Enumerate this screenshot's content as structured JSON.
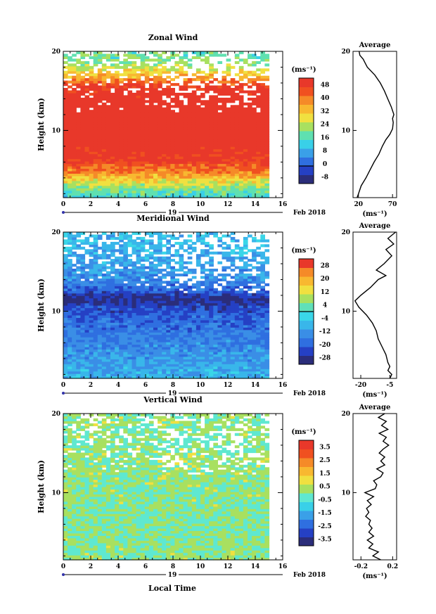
{
  "chart_data": [
    {
      "type": "heatmap",
      "title": "Zonal Wind",
      "xlabel": "",
      "ylabel": "Height (km)",
      "xlim": [
        0,
        16
      ],
      "ylim": [
        1.5,
        20
      ],
      "x_ticks": [
        "0",
        "2",
        "4",
        "6",
        "8",
        "10",
        "12",
        "14",
        "16"
      ],
      "y_ticks": [
        "10",
        "20"
      ],
      "date_label": "19",
      "date_suffix": "Feb 2018",
      "colorbar": {
        "unit": "(ms⁻¹)",
        "ticks": [
          "48",
          "40",
          "32",
          "24",
          "16",
          "8",
          "0",
          "-8"
        ],
        "min": -12,
        "max": 52,
        "colors": [
          "#2b2d7a",
          "#2540c4",
          "#2f6fe0",
          "#3aa0e8",
          "#39d0e8",
          "#5fe0b0",
          "#a8e060",
          "#f0e040",
          "#f8b830",
          "#f58a28",
          "#f05020",
          "#e8382a"
        ]
      },
      "field_profile": [
        {
          "h": 1.5,
          "v": 14
        },
        {
          "h": 2.5,
          "v": 20
        },
        {
          "h": 3.5,
          "v": 28
        },
        {
          "h": 4.5,
          "v": 38
        },
        {
          "h": 6,
          "v": 48
        },
        {
          "h": 8,
          "v": 52
        },
        {
          "h": 10,
          "v": 52
        },
        {
          "h": 12,
          "v": 52
        },
        {
          "h": 14,
          "v": 52
        },
        {
          "h": 15.5,
          "v": 48
        },
        {
          "h": 16.5,
          "v": 36
        },
        {
          "h": 17.5,
          "v": 28
        },
        {
          "h": 18.5,
          "v": 20
        },
        {
          "h": 20,
          "v": 18
        }
      ],
      "data_end_time": 15,
      "average_profile": {
        "title": "Average",
        "xlabel": "(ms⁻¹)",
        "x_ticks": [
          "20",
          "70"
        ],
        "xlim": [
          12,
          76
        ],
        "points": [
          {
            "h": 1.5,
            "v": 18
          },
          {
            "h": 2,
            "v": 20
          },
          {
            "h": 3,
            "v": 24
          },
          {
            "h": 4,
            "v": 31
          },
          {
            "h": 5,
            "v": 37
          },
          {
            "h": 6,
            "v": 43
          },
          {
            "h": 7,
            "v": 50
          },
          {
            "h": 8,
            "v": 55
          },
          {
            "h": 8.8,
            "v": 60
          },
          {
            "h": 9.5,
            "v": 66
          },
          {
            "h": 10.2,
            "v": 70
          },
          {
            "h": 11,
            "v": 71
          },
          {
            "h": 11.5,
            "v": 70
          },
          {
            "h": 12,
            "v": 72
          },
          {
            "h": 13,
            "v": 68
          },
          {
            "h": 14,
            "v": 63
          },
          {
            "h": 15,
            "v": 58
          },
          {
            "h": 16,
            "v": 52
          },
          {
            "h": 17,
            "v": 44
          },
          {
            "h": 18,
            "v": 33
          },
          {
            "h": 18.5,
            "v": 30
          },
          {
            "h": 19,
            "v": 27
          },
          {
            "h": 19.5,
            "v": 22
          },
          {
            "h": 20,
            "v": 21
          }
        ]
      }
    },
    {
      "type": "heatmap",
      "title": "Meridional Wind",
      "xlabel": "",
      "ylabel": "Height (km)",
      "xlim": [
        0,
        16
      ],
      "ylim": [
        1.5,
        20
      ],
      "x_ticks": [
        "0",
        "2",
        "4",
        "6",
        "8",
        "10",
        "12",
        "14",
        "16"
      ],
      "y_ticks": [
        "10",
        "20"
      ],
      "date_label": "19",
      "date_suffix": "Feb 2018",
      "colorbar": {
        "unit": "(ms⁻¹)",
        "ticks": [
          "28",
          "20",
          "12",
          "4",
          "-4",
          "-12",
          "-20",
          "-28"
        ],
        "min": -32,
        "max": 32,
        "colors": [
          "#2b2d7a",
          "#2540c4",
          "#2f6fe0",
          "#3a8ee6",
          "#39b6ea",
          "#3ad6e8",
          "#60e0b8",
          "#a8e060",
          "#f0e040",
          "#f8b830",
          "#f58a28",
          "#e8382a"
        ]
      },
      "field_profile": [
        {
          "h": 1.5,
          "v": -8
        },
        {
          "h": 3,
          "v": -10
        },
        {
          "h": 5,
          "v": -14
        },
        {
          "h": 7,
          "v": -16
        },
        {
          "h": 9,
          "v": -20
        },
        {
          "h": 10.5,
          "v": -24
        },
        {
          "h": 11.5,
          "v": -30
        },
        {
          "h": 12.5,
          "v": -20
        },
        {
          "h": 14,
          "v": -14
        },
        {
          "h": 16,
          "v": -10
        },
        {
          "h": 18,
          "v": -8
        },
        {
          "h": 20,
          "v": -6
        }
      ],
      "data_end_time": 15,
      "average_profile": {
        "title": "Average",
        "xlabel": "(ms⁻¹)",
        "x_ticks": [
          "-20",
          "-5"
        ],
        "xlim": [
          -24,
          -1.5
        ],
        "points": [
          {
            "h": 1.5,
            "v": -5
          },
          {
            "h": 2,
            "v": -4
          },
          {
            "h": 2.5,
            "v": -6
          },
          {
            "h": 3,
            "v": -5
          },
          {
            "h": 3.5,
            "v": -6
          },
          {
            "h": 4.5,
            "v": -7
          },
          {
            "h": 5.5,
            "v": -9
          },
          {
            "h": 6.5,
            "v": -11
          },
          {
            "h": 7.5,
            "v": -12
          },
          {
            "h": 8.5,
            "v": -14
          },
          {
            "h": 9.5,
            "v": -17
          },
          {
            "h": 10.5,
            "v": -21
          },
          {
            "h": 11.3,
            "v": -23
          },
          {
            "h": 12,
            "v": -20
          },
          {
            "h": 13,
            "v": -15
          },
          {
            "h": 14,
            "v": -11
          },
          {
            "h": 14.5,
            "v": -7
          },
          {
            "h": 15.2,
            "v": -12
          },
          {
            "h": 16,
            "v": -8
          },
          {
            "h": 17,
            "v": -4
          },
          {
            "h": 17.8,
            "v": -7
          },
          {
            "h": 18.5,
            "v": -3
          },
          {
            "h": 19.2,
            "v": -6
          },
          {
            "h": 20,
            "v": -2
          }
        ]
      }
    },
    {
      "type": "heatmap",
      "title": "Vertical Wind",
      "xlabel": "Local Time",
      "ylabel": "Height (km)",
      "xlim": [
        0,
        16
      ],
      "ylim": [
        1.5,
        20
      ],
      "x_ticks": [
        "0",
        "2",
        "4",
        "6",
        "8",
        "10",
        "12",
        "14",
        "16"
      ],
      "y_ticks": [
        "10",
        "20"
      ],
      "date_label": "19",
      "date_suffix": "Feb 2018",
      "colorbar": {
        "unit": "(ms⁻¹)",
        "ticks": [
          "3.5",
          "2.5",
          "1.5",
          "0.5",
          "-0.5",
          "-1.5",
          "-2.5",
          "-3.5"
        ],
        "min": -4,
        "max": 4,
        "colors": [
          "#2b2d7a",
          "#2540c4",
          "#2f6fe0",
          "#3aa0e8",
          "#39d0e8",
          "#5fe8d0",
          "#a8e060",
          "#f0e040",
          "#f8b830",
          "#f58a28",
          "#f05020",
          "#e8382a"
        ]
      },
      "field_profile": [
        {
          "h": 1.5,
          "v": 0.1
        },
        {
          "h": 5,
          "v": 0.0
        },
        {
          "h": 9,
          "v": 0.05
        },
        {
          "h": 12,
          "v": 0.1
        },
        {
          "h": 14,
          "v": 0.2
        },
        {
          "h": 16,
          "v": 0.05
        },
        {
          "h": 18,
          "v": 0.1
        },
        {
          "h": 20,
          "v": 0.1
        }
      ],
      "data_end_time": 15,
      "average_profile": {
        "title": "Average",
        "xlabel": "(ms⁻¹)",
        "x_ticks": [
          "-0.2",
          "0.2"
        ],
        "xlim": [
          -0.3,
          0.25
        ],
        "points": [
          {
            "h": 1.5,
            "v": 0.05
          },
          {
            "h": 2,
            "v": -0.05
          },
          {
            "h": 2.5,
            "v": 0.02
          },
          {
            "h": 3,
            "v": -0.1
          },
          {
            "h": 3.5,
            "v": -0.05
          },
          {
            "h": 4,
            "v": -0.12
          },
          {
            "h": 4.5,
            "v": -0.04
          },
          {
            "h": 5,
            "v": -0.1
          },
          {
            "h": 5.5,
            "v": -0.06
          },
          {
            "h": 6,
            "v": -0.1
          },
          {
            "h": 6.5,
            "v": -0.08
          },
          {
            "h": 7,
            "v": -0.14
          },
          {
            "h": 7.5,
            "v": -0.1
          },
          {
            "h": 8,
            "v": -0.13
          },
          {
            "h": 8.5,
            "v": -0.07
          },
          {
            "h": 9,
            "v": -0.12
          },
          {
            "h": 9.5,
            "v": -0.04
          },
          {
            "h": 10,
            "v": -0.15
          },
          {
            "h": 10.5,
            "v": -0.02
          },
          {
            "h": 11,
            "v": 0.0
          },
          {
            "h": 11.5,
            "v": -0.04
          },
          {
            "h": 12,
            "v": 0.05
          },
          {
            "h": 12.5,
            "v": 0.08
          },
          {
            "h": 13,
            "v": 0.0
          },
          {
            "h": 13.5,
            "v": 0.1
          },
          {
            "h": 14,
            "v": 0.05
          },
          {
            "h": 14.5,
            "v": 0.1
          },
          {
            "h": 15,
            "v": 0.03
          },
          {
            "h": 15.5,
            "v": 0.08
          },
          {
            "h": 16,
            "v": 0.15
          },
          {
            "h": 16.5,
            "v": 0.08
          },
          {
            "h": 17,
            "v": 0.12
          },
          {
            "h": 17.5,
            "v": 0.03
          },
          {
            "h": 18,
            "v": 0.14
          },
          {
            "h": 18.5,
            "v": 0.06
          },
          {
            "h": 19,
            "v": 0.12
          },
          {
            "h": 19.5,
            "v": 0.02
          },
          {
            "h": 20,
            "v": 0.1
          }
        ]
      }
    }
  ]
}
